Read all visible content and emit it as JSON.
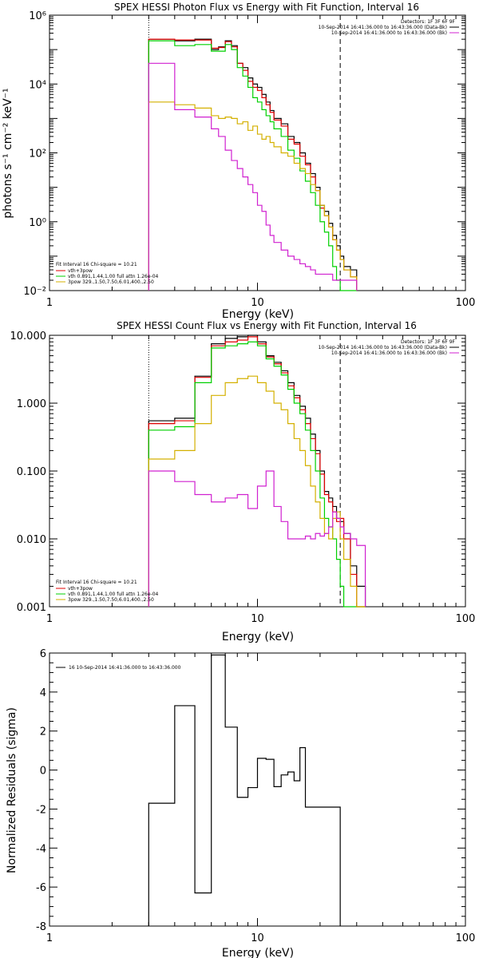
{
  "chart_data": [
    {
      "type": "line",
      "title": "SPEX HESSI Photon Flux vs Energy with Fit Function, Interval 16",
      "xlabel": "Energy (keV)",
      "ylabel": "photons s⁻¹ cm⁻² keV⁻¹",
      "xscale": "log",
      "yscale": "log",
      "xlim": [
        1,
        100
      ],
      "ylim": [
        0.01,
        1000000
      ],
      "x_ticks": [
        1,
        10,
        100
      ],
      "x_tick_labels": [
        "1",
        "10",
        "100"
      ],
      "y_ticks": [
        0.01,
        1,
        100,
        10000,
        1000000
      ],
      "y_tick_labels": [
        "10⁻²",
        "10⁰",
        "10²",
        "10⁴",
        "10⁶"
      ],
      "vlines": [
        {
          "x": 3,
          "style": "dotted"
        },
        {
          "x": 25,
          "style": "dashed"
        }
      ],
      "legend_top": [
        "Detectors: 1F 3F 6F 9F",
        "10-Sep-2014 16:41:36.000 to 16:43:36.000 (Data-Bk)",
        "10-Sep-2014 16:41:36.000 to 16:43:36.000 (Bk)"
      ],
      "legend_top_colors": [
        "#000000",
        "#000000",
        "#d020d0"
      ],
      "legend_bottom": [
        "Fit Interval 16   Chi-square = 10.21",
        "vth+3pow",
        "vth 0.891,1.44,1.00  full attn 1.26e-04",
        "3pow 329.,1.50,7.50,6.01,400.,2.50"
      ],
      "legend_bottom_colors": [
        "#000000",
        "#e00000",
        "#00d000",
        "#d4b000"
      ],
      "edges": [
        3,
        3.5,
        4,
        4.5,
        5,
        5.5,
        6,
        6.5,
        7,
        7.5,
        8,
        8.5,
        9,
        9.5,
        10,
        10.5,
        11,
        11.5,
        12,
        13,
        14,
        15,
        16,
        17,
        18,
        19,
        20,
        21,
        22,
        23,
        24,
        25,
        26,
        28,
        30
      ],
      "series": [
        {
          "color": "#000000",
          "values": [
            200000,
            200000,
            180000,
            180000,
            200000,
            200000,
            100000,
            120000,
            180000,
            130000,
            40000,
            30000,
            15000,
            10000,
            8000,
            5000,
            3000,
            1700,
            1000,
            700,
            300,
            200,
            100,
            50,
            25,
            10,
            3,
            2,
            0.9,
            0.4,
            0.2,
            0.1,
            0.05,
            0.04
          ]
        },
        {
          "color": "#e00000",
          "values": [
            200000,
            200000,
            190000,
            190000,
            190000,
            190000,
            110000,
            115000,
            170000,
            120000,
            40000,
            25000,
            12000,
            8000,
            6500,
            4000,
            2500,
            1500,
            900,
            600,
            250,
            180,
            80,
            45,
            20,
            8,
            2.5,
            1.5,
            0.7,
            0.3,
            0.15,
            0.08,
            0.04,
            0.025
          ]
        },
        {
          "color": "#00d000",
          "values": [
            180000,
            180000,
            130000,
            130000,
            140000,
            140000,
            90000,
            90000,
            140000,
            100000,
            30000,
            17000,
            8000,
            4000,
            3000,
            1800,
            1200,
            800,
            500,
            300,
            120,
            70,
            30,
            15,
            7,
            3,
            1,
            0.5,
            0.2,
            0.05,
            0.02,
            0.01,
            0.01,
            0.01
          ]
        },
        {
          "color": "#d4b000",
          "values": [
            3000,
            3000,
            2500,
            2500,
            2000,
            2000,
            1200,
            1000,
            1100,
            1000,
            700,
            800,
            450,
            600,
            350,
            250,
            300,
            200,
            150,
            100,
            80,
            50,
            35,
            25,
            12,
            8,
            3,
            1.5,
            0.7,
            0.3,
            0.15,
            0.08,
            0.04,
            0.025
          ]
        },
        {
          "color": "#d020d0",
          "values": [
            40000,
            40000,
            1800,
            1800,
            1100,
            1100,
            500,
            300,
            120,
            60,
            35,
            20,
            12,
            7,
            3,
            2,
            0.8,
            0.4,
            0.25,
            0.15,
            0.1,
            0.08,
            0.06,
            0.05,
            0.04,
            0.03,
            0.03,
            0.03,
            0.03,
            0.02,
            0.02,
            0.02,
            0.02,
            0.02
          ]
        }
      ]
    },
    {
      "type": "line",
      "title": "SPEX HESSI Count Flux vs Energy with Fit Function, Interval 16",
      "xlabel": "Energy (keV)",
      "ylabel": "",
      "xscale": "log",
      "yscale": "log",
      "xlim": [
        1,
        100
      ],
      "ylim": [
        0.001,
        10
      ],
      "x_ticks": [
        1,
        10,
        100
      ],
      "x_tick_labels": [
        "1",
        "10",
        "100"
      ],
      "y_ticks": [
        0.001,
        0.01,
        0.1,
        1,
        10
      ],
      "y_tick_labels": [
        "0.001",
        "0.010",
        "0.100",
        "1.000",
        "10.000"
      ],
      "vlines": [
        {
          "x": 3,
          "style": "dotted"
        },
        {
          "x": 25,
          "style": "dashed"
        }
      ],
      "legend_top": [
        "Detectors: 1F 3F 6F 9F",
        "10-Sep-2014 16:41:36.000 to 16:43:36.000 (Data-Bk)",
        "10-Sep-2014 16:41:36.000 to 16:43:36.000 (Bk)"
      ],
      "legend_top_colors": [
        "#000000",
        "#000000",
        "#d020d0"
      ],
      "legend_bottom": [
        "Fit Interval 16   Chi-square = 10.21",
        "vth+3pow",
        "vth 0.891,1.44,1.00  full attn 1.26e-04",
        "3pow 329.,1.50,7.50,6.01,400.,2.50"
      ],
      "legend_bottom_colors": [
        "#000000",
        "#e00000",
        "#00d000",
        "#d4b000"
      ],
      "edges": [
        3,
        4,
        5,
        6,
        7,
        8,
        9,
        10,
        11,
        12,
        13,
        14,
        15,
        16,
        17,
        18,
        19,
        20,
        21,
        22,
        23,
        24,
        25,
        26,
        28,
        30,
        33
      ],
      "series": [
        {
          "color": "#000000",
          "values": [
            0.55,
            0.6,
            2.5,
            7.5,
            9,
            9.5,
            10,
            8,
            5,
            4,
            3,
            2,
            1.3,
            0.9,
            0.6,
            0.35,
            0.2,
            0.1,
            0.05,
            0.04,
            0.03,
            0.02,
            0.018,
            0.012,
            0.004,
            0.002
          ]
        },
        {
          "color": "#e00000",
          "values": [
            0.5,
            0.55,
            2.4,
            7,
            8,
            8.5,
            9.5,
            7.5,
            4.8,
            3.8,
            2.8,
            1.8,
            1.2,
            0.8,
            0.5,
            0.3,
            0.18,
            0.09,
            0.045,
            0.035,
            0.025,
            0.018,
            0.02,
            0.01,
            0.003,
            0.001
          ]
        },
        {
          "color": "#00d000",
          "values": [
            0.4,
            0.45,
            2,
            6.5,
            7,
            7.5,
            8,
            7,
            4.5,
            3.5,
            2.6,
            1.6,
            1,
            0.7,
            0.4,
            0.2,
            0.1,
            0.04,
            0.02,
            0.015,
            0.01,
            0.005,
            0.002,
            0.001,
            0.001,
            0.001
          ]
        },
        {
          "color": "#d4b000",
          "values": [
            0.15,
            0.2,
            0.5,
            1.3,
            2,
            2.3,
            2.5,
            2,
            1.5,
            1,
            0.8,
            0.5,
            0.3,
            0.2,
            0.12,
            0.06,
            0.035,
            0.02,
            0.012,
            0.01,
            0.02,
            0.025,
            0.01,
            0.005,
            0.002,
            0.001
          ]
        },
        {
          "color": "#d020d0",
          "values": [
            0.1,
            0.07,
            0.045,
            0.035,
            0.04,
            0.045,
            0.028,
            0.06,
            0.1,
            0.03,
            0.018,
            0.01,
            0.01,
            0.01,
            0.011,
            0.01,
            0.012,
            0.011,
            0.012,
            0.015,
            0.025,
            0.02,
            0.015,
            0.012,
            0.01,
            0.008
          ]
        }
      ]
    },
    {
      "type": "line",
      "title": "",
      "xlabel": "Energy (keV)",
      "ylabel": "Normalized Residuals (sigma)",
      "xscale": "log",
      "yscale": "linear",
      "xlim": [
        1,
        100
      ],
      "ylim": [
        -8,
        6
      ],
      "x_ticks": [
        1,
        10,
        100
      ],
      "x_tick_labels": [
        "1",
        "10",
        "100"
      ],
      "y_ticks": [
        -8,
        -6,
        -4,
        -2,
        0,
        2,
        4,
        6
      ],
      "y_tick_labels": [
        "-8",
        "-6",
        "-4",
        "-2",
        "0",
        "2",
        "4",
        "6"
      ],
      "legend_top": [
        "16  10-Sep-2014 16:41:36.000 to 16:43:36.000"
      ],
      "legend_top_colors": [
        "#000000"
      ],
      "edges": [
        3,
        4,
        5,
        6,
        7,
        8,
        9,
        10,
        11,
        12,
        13,
        14,
        15,
        16,
        17,
        18,
        20,
        23,
        25
      ],
      "series": [
        {
          "color": "#000000",
          "values": [
            -1.7,
            3.3,
            -6.3,
            5.9,
            2.2,
            -1.4,
            -0.9,
            0.6,
            0.55,
            -0.85,
            -0.25,
            -0.1,
            -0.55,
            1.15,
            -1.9,
            -1.9,
            -1.9,
            -1.9
          ]
        }
      ]
    }
  ]
}
